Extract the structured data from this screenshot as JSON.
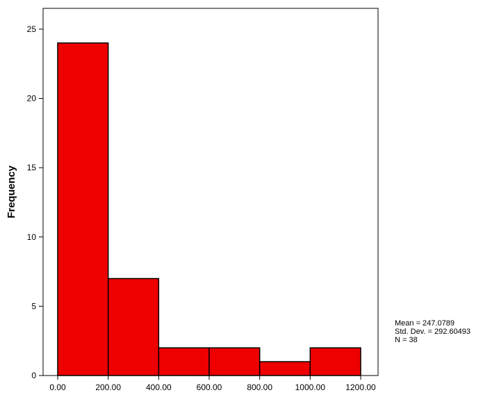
{
  "chart_data": {
    "type": "bar",
    "histogram": true,
    "bins": [
      {
        "from": 0,
        "to": 200,
        "count": 24
      },
      {
        "from": 200,
        "to": 400,
        "count": 7
      },
      {
        "from": 400,
        "to": 600,
        "count": 2
      },
      {
        "from": 600,
        "to": 800,
        "count": 2
      },
      {
        "from": 800,
        "to": 1000,
        "count": 1
      },
      {
        "from": 1000,
        "to": 1200,
        "count": 2
      }
    ],
    "x_ticks": [
      "0.00",
      "200.00",
      "400.00",
      "600.00",
      "800.00",
      "1000.00",
      "1200.00"
    ],
    "y_ticks": [
      "0",
      "5",
      "10",
      "15",
      "20",
      "25"
    ],
    "xlabel": "",
    "ylabel": "Frequency",
    "xlim": [
      0,
      1200
    ],
    "ylim": [
      0,
      26.5
    ],
    "grid": false,
    "bar_color": "#ee0000",
    "stats": {
      "mean": "Mean = 247.0789",
      "std": "Std. Dev. = 292.60493",
      "n": "N = 38"
    }
  }
}
